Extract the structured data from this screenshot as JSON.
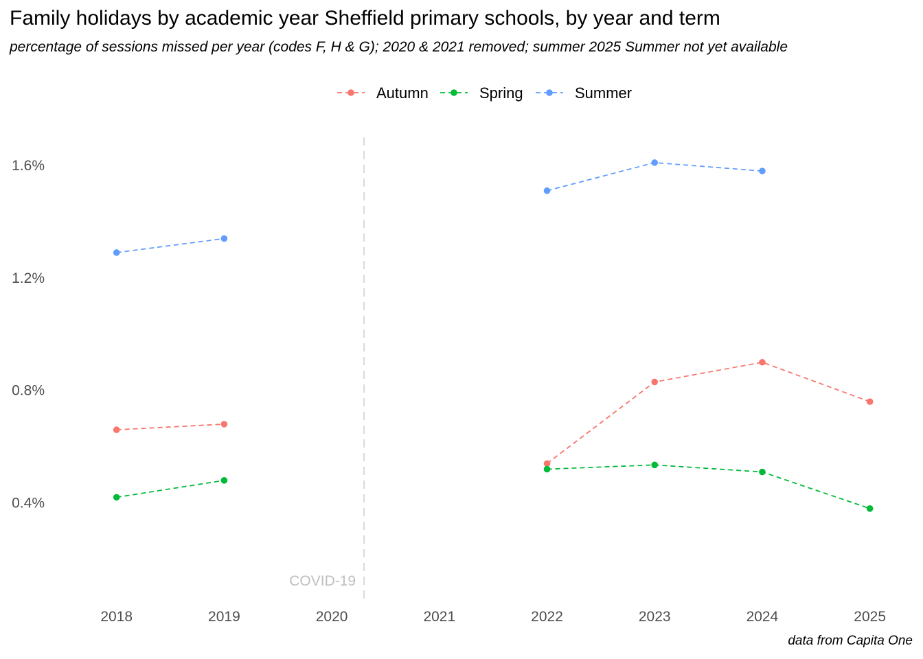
{
  "chart_data": {
    "type": "line",
    "title": "Family holidays by academic year Sheffield primary schools, by year and term",
    "subtitle": "percentage of sessions missed per year (codes F, H & G); 2020 & 2021 removed; summer 2025 Summer not yet available",
    "caption": "data from Capita One",
    "x": [
      2018,
      2019,
      2020,
      2021,
      2022,
      2023,
      2024,
      2025
    ],
    "x_tick_labels": [
      "2018",
      "2019",
      "2020",
      "2021",
      "2022",
      "2023",
      "2024",
      "2025"
    ],
    "y_ticks": [
      0.4,
      0.8,
      1.2,
      1.6
    ],
    "y_tick_labels": [
      "0.4%",
      "0.8%",
      "1.2%",
      "1.6%"
    ],
    "ylim": [
      0.05,
      1.7
    ],
    "xlim": [
      2017.6,
      2025.2
    ],
    "grid": false,
    "legend_position": "top",
    "line_style": "dashed",
    "series": [
      {
        "name": "Autumn",
        "color": "#F8766D",
        "values": [
          0.66,
          0.68,
          null,
          null,
          0.54,
          0.83,
          0.9,
          0.76
        ]
      },
      {
        "name": "Spring",
        "color": "#00BA38",
        "values": [
          0.42,
          0.48,
          null,
          null,
          0.52,
          0.535,
          0.51,
          0.38
        ]
      },
      {
        "name": "Summer",
        "color": "#619CFF",
        "values": [
          1.29,
          1.34,
          null,
          null,
          1.51,
          1.61,
          1.58,
          null
        ]
      }
    ],
    "annotations": [
      {
        "type": "vline",
        "x": 2020.3,
        "label": "COVID-19",
        "color": "#d9d9d9"
      }
    ]
  }
}
